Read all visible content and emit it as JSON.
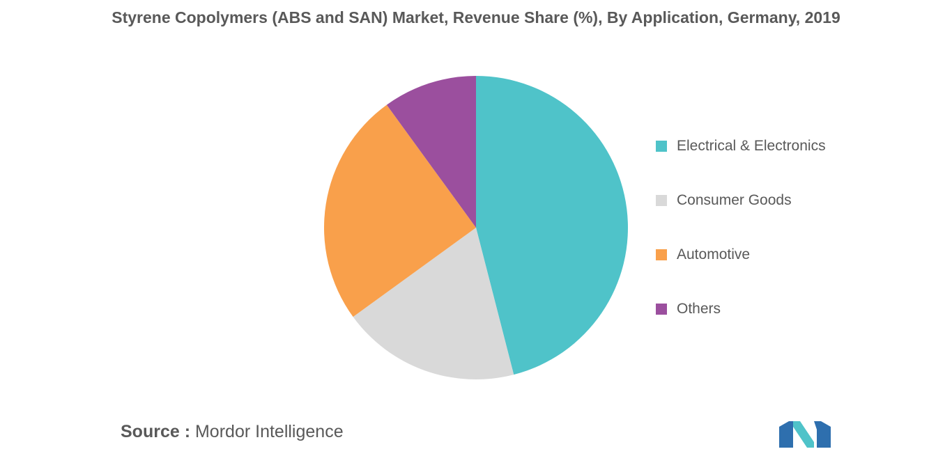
{
  "chart_data": {
    "type": "pie",
    "title": "Styrene Copolymers (ABS and SAN) Market, Revenue Share (%), By Application, Germany, 2019",
    "slices": [
      {
        "label": "Electrical & Electronics",
        "value": 46,
        "color": "#4fc3c9"
      },
      {
        "label": "Consumer Goods",
        "value": 19,
        "color": "#d9d9d9"
      },
      {
        "label": "Automotive",
        "value": 25,
        "color": "#f9a04b"
      },
      {
        "label": "Others",
        "value": 10,
        "color": "#9b4f9e"
      }
    ],
    "legend_position": "right"
  },
  "source": {
    "prefix": "Source :",
    "name": "Mordor Intelligence"
  },
  "logo": {
    "icon": "mordor-intelligence-logo-icon",
    "colors": [
      "#2e6fae",
      "#4fc3c9"
    ]
  }
}
